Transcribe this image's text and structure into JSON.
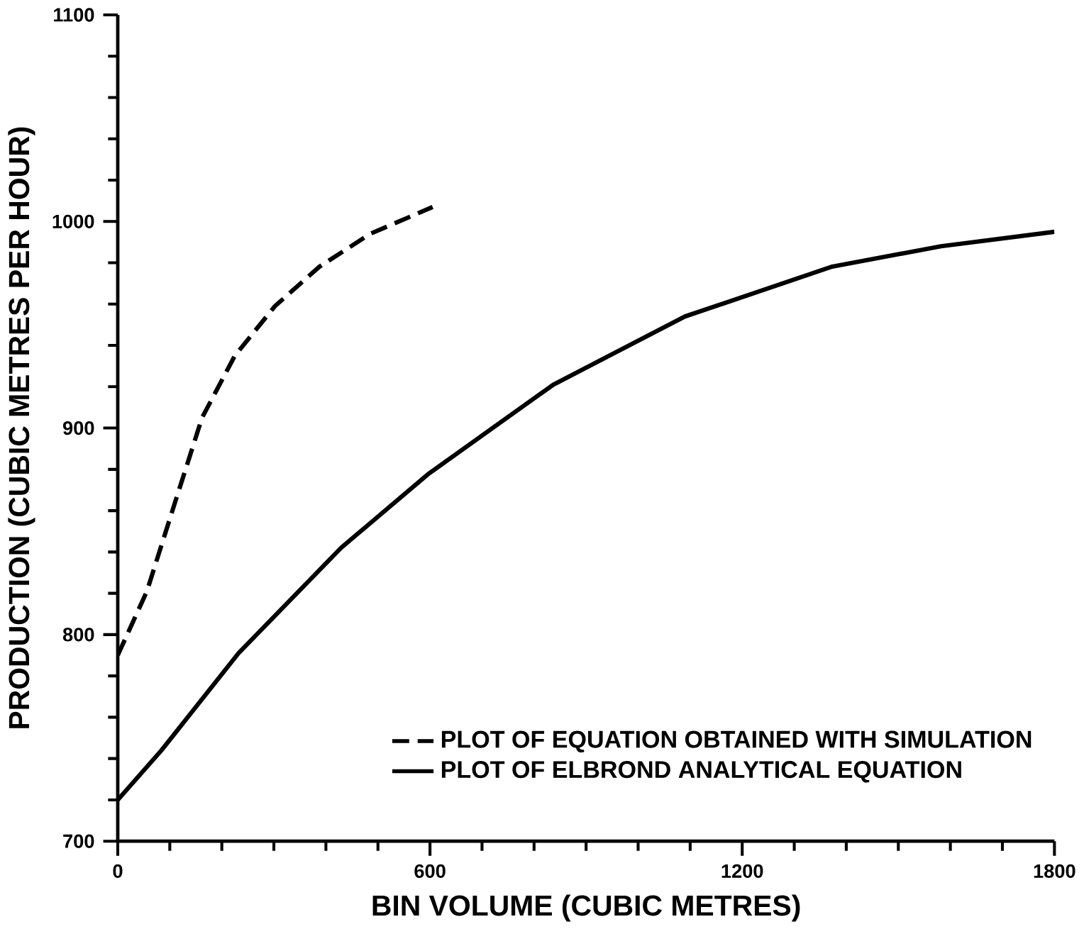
{
  "chart_data": {
    "type": "line",
    "xlabel": "BIN VOLUME (CUBIC METRES)",
    "ylabel": "PRODUCTION (CUBIC METRES PER HOUR)",
    "xlim": [
      0,
      1800
    ],
    "xticks": [
      0,
      600,
      1200,
      1800
    ],
    "ylim": [
      700,
      1100
    ],
    "yticks": [
      700,
      800,
      900,
      1000,
      1100
    ],
    "legend": "bottom right",
    "grid": false,
    "marker": "none",
    "series": [
      {
        "name": "PLOT OF EQUATION OBTAINED WITH SIMULATION",
        "color": "#000000",
        "line_style": "dashed",
        "x": [
          0,
          56,
          105,
          162,
          225,
          302,
          387,
          485,
          605
        ],
        "values": [
          790,
          821,
          860,
          905,
          935,
          959,
          978,
          994,
          1007
        ]
      },
      {
        "name": "PLOT OF ELBROND ANALYTICAL EQUATION",
        "color": "#000000",
        "line_style": "solid",
        "x": [
          0,
          84,
          232,
          429,
          598,
          837,
          1090,
          1371,
          1582,
          1800
        ],
        "values": [
          720,
          744,
          791,
          842,
          878,
          921,
          954,
          978,
          988,
          995
        ]
      }
    ]
  }
}
